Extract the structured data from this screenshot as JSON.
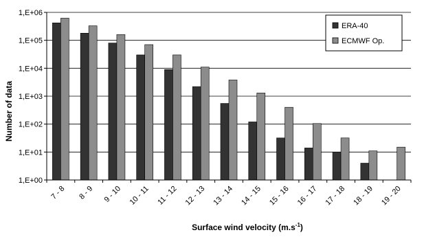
{
  "chart_data": {
    "type": "bar",
    "title": "",
    "xlabel": "Surface wind velocity (m.s",
    "xlabel_superscript": "-1",
    "xlabel_close": ")",
    "ylabel": "Number of data",
    "yscale": "log",
    "ylim": [
      1,
      1000000
    ],
    "yticks": [
      1,
      10,
      100,
      1000,
      10000,
      100000,
      1000000
    ],
    "ytick_labels": [
      "1,E+00",
      "1,E+01",
      "1,E+02",
      "1,E+03",
      "1,E+04",
      "1,E+05",
      "1,E+06"
    ],
    "grid": "horizontal",
    "legend_position": "top-right",
    "categories": [
      "7 - 8",
      "8 - 9",
      "9 - 10",
      "10 - 11",
      "11 - 12",
      "12 - 13",
      "13 - 14",
      "14 - 15",
      "15 - 16",
      "16 - 17",
      "17 - 18",
      "18 - 19",
      "19 - 20"
    ],
    "series": [
      {
        "name": "ERA-40",
        "color": "#333333",
        "values": [
          420000,
          180000,
          80000,
          30000,
          9000,
          2200,
          550,
          120,
          32,
          14,
          10,
          4,
          null
        ]
      },
      {
        "name": "ECMWF Op.",
        "color": "#8c8c8c",
        "values": [
          620000,
          330000,
          160000,
          70000,
          30000,
          11000,
          3800,
          1300,
          400,
          105,
          32,
          11,
          15
        ]
      }
    ]
  }
}
